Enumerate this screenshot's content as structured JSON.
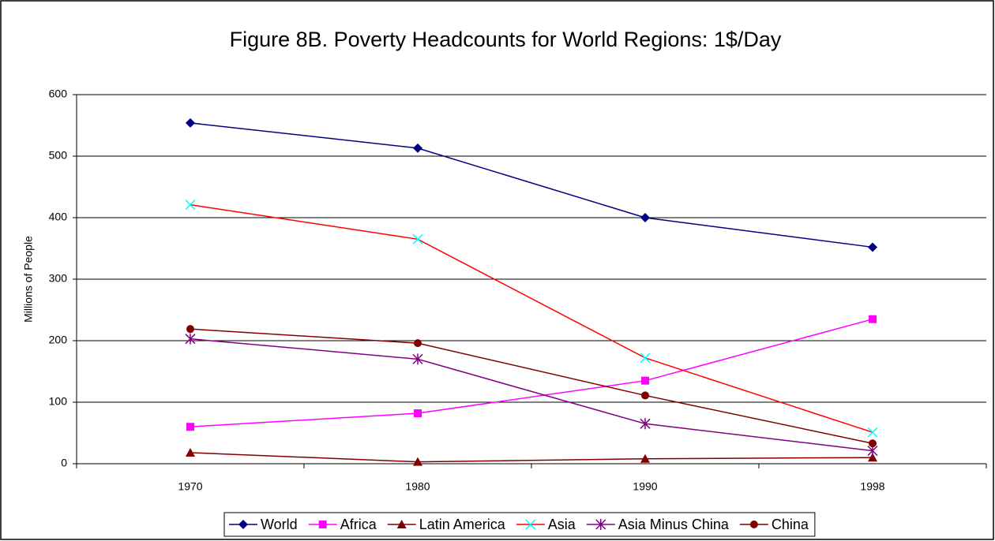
{
  "chart_data": {
    "type": "line",
    "title": "Figure 8B. Poverty Headcounts for World Regions: 1$/Day",
    "y_label": "Millions of People",
    "categories": [
      "1970",
      "1980",
      "1990",
      "1998"
    ],
    "series": [
      {
        "name": "World",
        "color": "#000080",
        "marker_color": "#000080",
        "marker": "diamond",
        "values": [
          554,
          513,
          400,
          352
        ]
      },
      {
        "name": "Africa",
        "color": "#ff00ff",
        "marker_color": "#ff00ff",
        "marker": "square",
        "values": [
          60,
          82,
          135,
          235
        ]
      },
      {
        "name": "Latin America",
        "color": "#800000",
        "marker_color": "#800000",
        "marker": "triangle",
        "values": [
          18,
          3,
          8,
          10
        ]
      },
      {
        "name": "Asia",
        "color": "#ff0000",
        "marker_color": "#00ffff",
        "marker": "x",
        "values": [
          421,
          365,
          172,
          51
        ]
      },
      {
        "name": "Asia Minus China",
        "color": "#800080",
        "marker_color": "#800080",
        "marker": "star",
        "values": [
          203,
          170,
          65,
          21
        ]
      },
      {
        "name": "China",
        "color": "#800000",
        "marker_color": "#800000",
        "marker": "circle",
        "values": [
          219,
          196,
          111,
          33
        ]
      }
    ],
    "ylim": [
      0,
      600
    ],
    "yticks": [
      0,
      100,
      200,
      300,
      400,
      500,
      600
    ],
    "grid": true,
    "legend": "bottom"
  }
}
